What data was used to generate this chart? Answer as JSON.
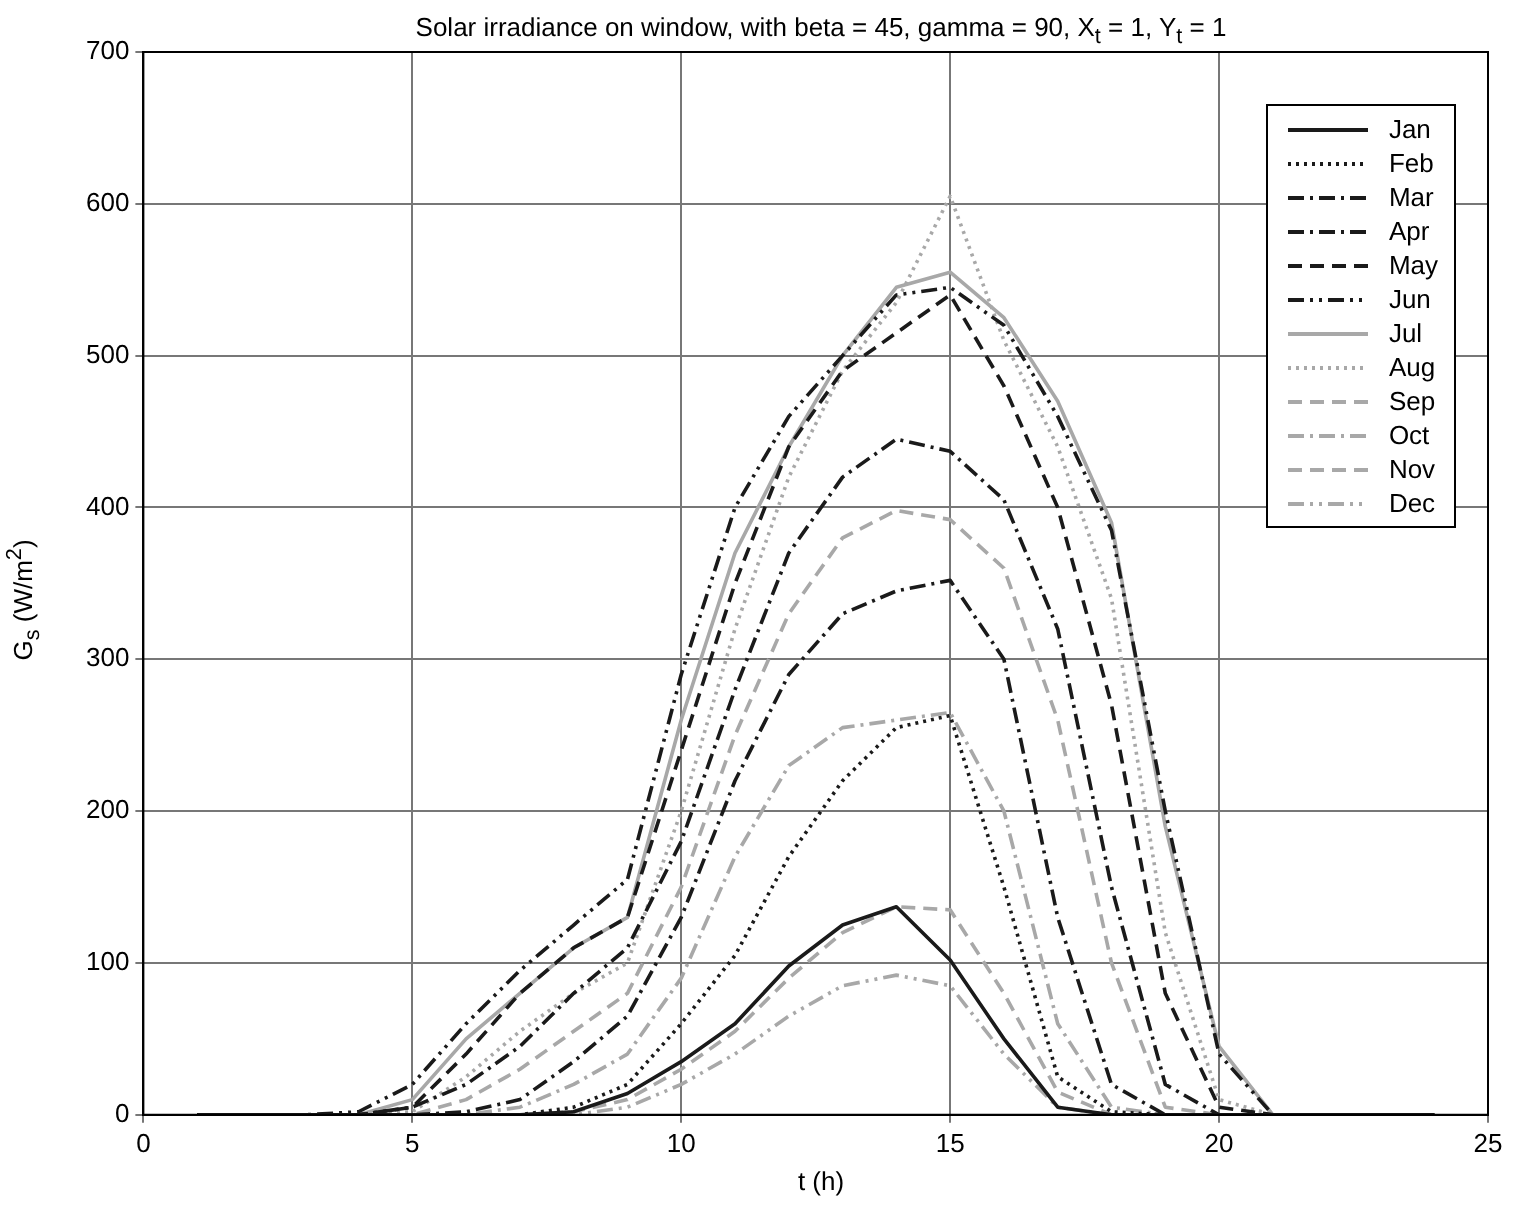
{
  "chart_data": {
    "type": "line",
    "title": "Solar irradiance on window, with beta = 45, gamma = 90, X$_{t}$ = 1, Y$_{t}$ = 1",
    "xlabel": "t (h)",
    "ylabel": "G$_{s}$ (W/m$^{2}$)",
    "x": [
      1,
      2,
      3,
      4,
      5,
      6,
      7,
      8,
      9,
      10,
      11,
      12,
      13,
      14,
      15,
      16,
      17,
      18,
      19,
      20,
      21,
      22,
      23,
      24
    ],
    "xlim": [
      0,
      25
    ],
    "xticks": [
      0,
      5,
      10,
      15,
      20,
      25
    ],
    "ylim": [
      0,
      700
    ],
    "yticks": [
      0,
      100,
      200,
      300,
      400,
      500,
      600,
      700
    ],
    "grid": true,
    "legend": "top right",
    "marker": "none",
    "series": [
      {
        "name": "Jan",
        "color": "#1a1a1a",
        "line_style": "solid",
        "values": [
          0,
          0,
          0,
          0,
          0,
          0,
          0,
          2,
          14,
          35,
          60,
          98,
          125,
          137,
          102,
          50,
          5,
          0,
          0,
          0,
          0,
          0,
          0,
          0
        ]
      },
      {
        "name": "Feb",
        "color": "#1a1a1a",
        "line_style": "dotted",
        "values": [
          0,
          0,
          0,
          0,
          0,
          0,
          0,
          5,
          20,
          60,
          105,
          170,
          220,
          255,
          263,
          150,
          25,
          2,
          0,
          0,
          0,
          0,
          0,
          0
        ]
      },
      {
        "name": "Mar",
        "color": "#1a1a1a",
        "line_style": "dashdot",
        "values": [
          0,
          0,
          0,
          0,
          0,
          2,
          10,
          35,
          65,
          130,
          220,
          290,
          330,
          345,
          352,
          300,
          130,
          20,
          0,
          0,
          0,
          0,
          0,
          0
        ]
      },
      {
        "name": "Apr",
        "color": "#1a1a1a",
        "line_style": "dashdot",
        "values": [
          0,
          0,
          0,
          0,
          5,
          20,
          45,
          80,
          110,
          180,
          280,
          370,
          420,
          445,
          437,
          405,
          320,
          150,
          20,
          0,
          0,
          0,
          0,
          0
        ]
      },
      {
        "name": "May",
        "color": "#1a1a1a",
        "line_style": "dashed",
        "values": [
          0,
          0,
          0,
          0,
          5,
          40,
          80,
          110,
          130,
          240,
          350,
          440,
          490,
          515,
          540,
          480,
          400,
          270,
          80,
          5,
          0,
          0,
          0,
          0
        ]
      },
      {
        "name": "Jun",
        "color": "#1a1a1a",
        "line_style": "dashdotdot",
        "values": [
          0,
          0,
          0,
          2,
          20,
          60,
          95,
          125,
          155,
          290,
          400,
          460,
          500,
          540,
          545,
          520,
          460,
          385,
          200,
          40,
          0,
          0,
          0,
          0
        ]
      },
      {
        "name": "Jul",
        "color": "#a8a8a8",
        "line_style": "solid",
        "values": [
          0,
          0,
          0,
          0,
          10,
          50,
          80,
          110,
          130,
          260,
          370,
          440,
          500,
          545,
          555,
          525,
          470,
          390,
          190,
          45,
          0,
          0,
          0,
          0
        ]
      },
      {
        "name": "Aug",
        "color": "#a8a8a8",
        "line_style": "dotted",
        "values": [
          0,
          0,
          0,
          0,
          2,
          25,
          55,
          80,
          100,
          200,
          320,
          420,
          490,
          535,
          605,
          510,
          440,
          340,
          120,
          10,
          0,
          0,
          0,
          0
        ]
      },
      {
        "name": "Sep",
        "color": "#a8a8a8",
        "line_style": "dashed",
        "values": [
          0,
          0,
          0,
          0,
          0,
          10,
          30,
          55,
          80,
          150,
          250,
          330,
          380,
          398,
          392,
          360,
          260,
          100,
          5,
          0,
          0,
          0,
          0,
          0
        ]
      },
      {
        "name": "Oct",
        "color": "#a8a8a8",
        "line_style": "dashdot",
        "values": [
          0,
          0,
          0,
          0,
          0,
          0,
          5,
          20,
          40,
          90,
          170,
          230,
          255,
          260,
          265,
          200,
          60,
          5,
          0,
          0,
          0,
          0,
          0,
          0
        ]
      },
      {
        "name": "Nov",
        "color": "#a8a8a8",
        "line_style": "dashed",
        "values": [
          0,
          0,
          0,
          0,
          0,
          0,
          0,
          2,
          10,
          30,
          55,
          90,
          120,
          137,
          135,
          80,
          15,
          0,
          0,
          0,
          0,
          0,
          0,
          0
        ]
      },
      {
        "name": "Dec",
        "color": "#a8a8a8",
        "line_style": "dashdotdot",
        "values": [
          0,
          0,
          0,
          0,
          0,
          0,
          0,
          0,
          5,
          20,
          40,
          65,
          85,
          92,
          85,
          40,
          5,
          0,
          0,
          0,
          0,
          0,
          0,
          0
        ]
      }
    ]
  }
}
